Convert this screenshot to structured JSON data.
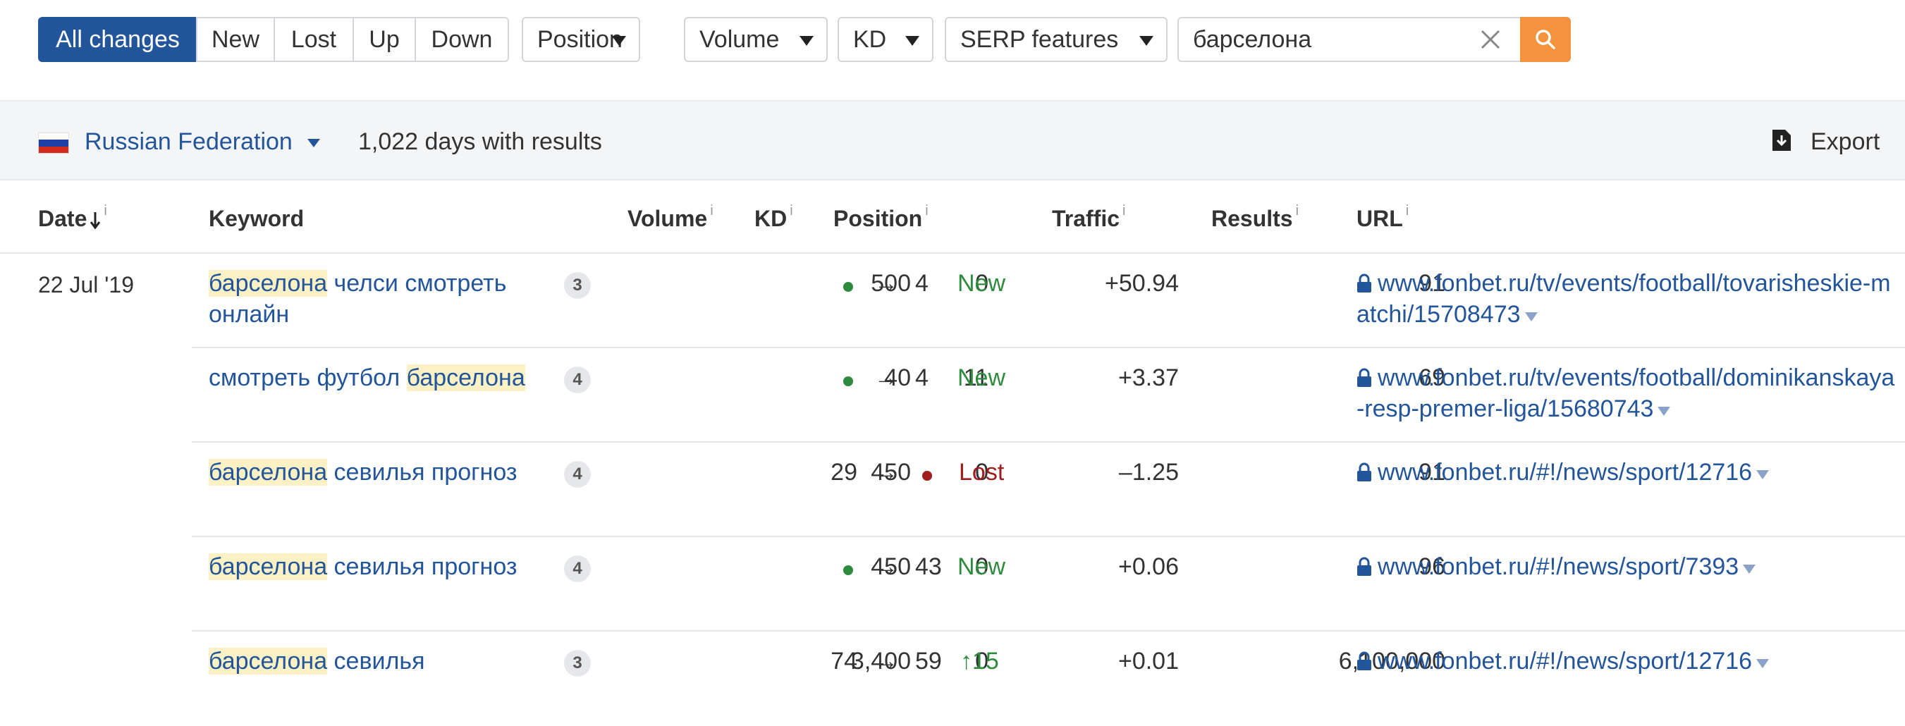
{
  "filters": {
    "segments": [
      "All changes",
      "New",
      "Lost",
      "Up",
      "Down"
    ],
    "active_segment": "All changes",
    "position_label": "Position",
    "volume_label": "Volume",
    "kd_label": "KD",
    "serp_label": "SERP features",
    "search_value": "барселона"
  },
  "subbar": {
    "country": "Russian Federation",
    "days": "1,022 days with results",
    "export_label": "Export"
  },
  "table": {
    "headers": {
      "date": "Date",
      "keyword": "Keyword",
      "volume": "Volume",
      "kd": "KD",
      "position": "Position",
      "traffic": "Traffic",
      "results": "Results",
      "url": "URL"
    },
    "info_mark": "i",
    "date": "22 Jul '19",
    "rows": [
      {
        "kw_pre": "",
        "kw_hl": "барселона",
        "kw_post": " челси смотреть онлайн",
        "serp_count": "3",
        "volume": "500",
        "kd": "0",
        "pos_from": "",
        "arrow": "→",
        "pos_to": "4",
        "status": "New",
        "traffic": "+50.94",
        "results": "91",
        "url": "www.fonbet.ru/tv/events/football/tovarisheskie-matchi/15708473"
      },
      {
        "kw_pre": "смотреть футбол ",
        "kw_hl": "барселона",
        "kw_post": "",
        "serp_count": "4",
        "volume": "40",
        "kd": "11",
        "pos_from": "",
        "arrow": "→",
        "pos_to": "4",
        "status": "New",
        "traffic": "+3.37",
        "results": "69",
        "url": "www.fonbet.ru/tv/events/football/dominikanskaya-resp-premer-liga/15680743"
      },
      {
        "kw_pre": "",
        "kw_hl": "барселона",
        "kw_post": " севилья прогноз",
        "serp_count": "4",
        "volume": "450",
        "kd": "0",
        "pos_from": "29",
        "arrow": "→",
        "pos_to": "",
        "status": "Lost",
        "traffic": "–1.25",
        "results": "91",
        "url": "www.fonbet.ru/#!/news/sport/12716"
      },
      {
        "kw_pre": "",
        "kw_hl": "барселона",
        "kw_post": " севилья прогноз",
        "serp_count": "4",
        "volume": "450",
        "kd": "0",
        "pos_from": "",
        "arrow": "→",
        "pos_to": "43",
        "status": "New",
        "traffic": "+0.06",
        "results": "96",
        "url": "www.fonbet.ru/#!/news/sport/7393"
      },
      {
        "kw_pre": "",
        "kw_hl": "барселона",
        "kw_post": " севилья",
        "serp_count": "3",
        "volume": "3,400",
        "kd": "0",
        "pos_from": "74",
        "arrow": "→",
        "pos_to": "59",
        "status": "↑15",
        "traffic": "+0.01",
        "results": "6,100,000",
        "url": "www.fonbet.ru/#!/news/sport/12716"
      }
    ]
  },
  "colors": {
    "brand_blue": "#23559b",
    "search_orange": "#f5923d",
    "new_green": "#2e8b3d",
    "lost_red": "#a11c1c",
    "highlight": "#fbf1c4"
  }
}
